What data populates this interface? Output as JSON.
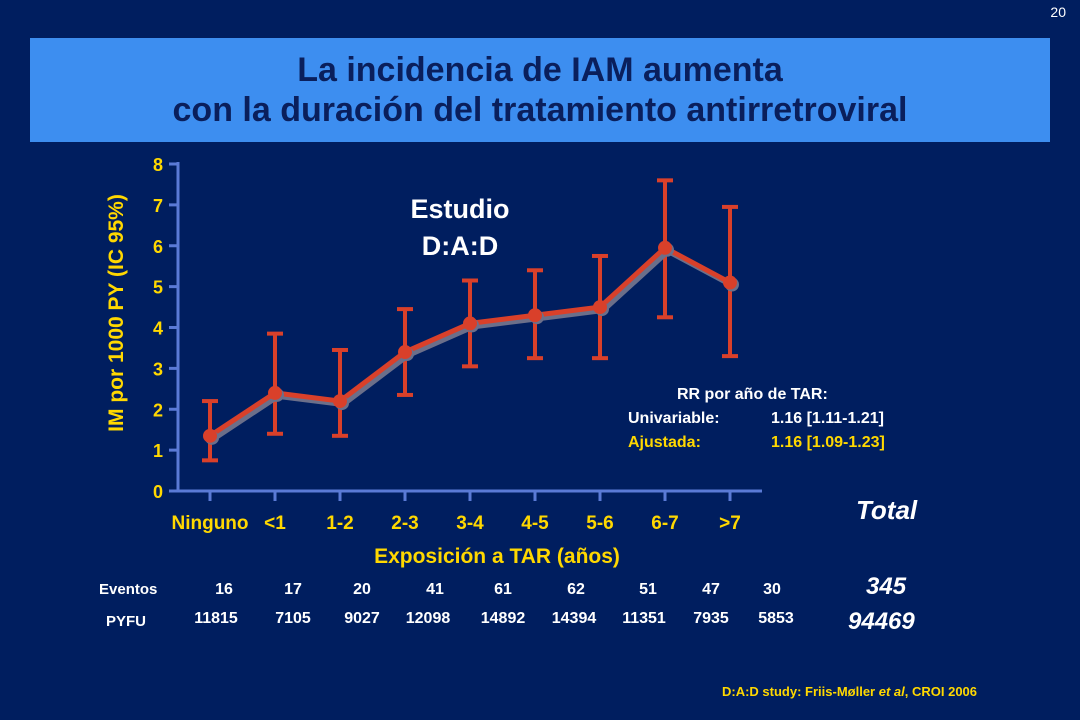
{
  "slide_number": "20",
  "title": {
    "line1": "La incidencia de IAM aumenta",
    "line2": "con la duración del tratamiento antirretroviral"
  },
  "colors": {
    "background": "#001e5f",
    "title_bar": "#3d8ef0",
    "title_text": "#0a1f5c",
    "series": "#d9402a",
    "axis": "#5a7ad6",
    "label_yellow": "#ffd800"
  },
  "chart_data": {
    "type": "line",
    "title": "",
    "annotation": [
      "Estudio",
      "D:A:D"
    ],
    "xlabel": "Exposición a TAR (años)",
    "ylabel": "IM por 1000 PY (IC 95%)",
    "ylim": [
      0,
      8
    ],
    "yticks": [
      "0",
      "1",
      "2",
      "3",
      "4",
      "5",
      "6",
      "7",
      "8"
    ],
    "categories": [
      "Ninguno",
      "<1",
      "1-2",
      "2-3",
      "3-4",
      "4-5",
      "5-6",
      "6-7",
      ">7"
    ],
    "series": [
      {
        "values": [
          1.35,
          2.4,
          2.2,
          3.4,
          4.1,
          4.3,
          4.5,
          5.95,
          5.1
        ],
        "ci_lower": [
          0.75,
          1.4,
          1.35,
          2.35,
          3.05,
          3.25,
          3.25,
          4.25,
          3.3
        ],
        "ci_upper": [
          2.2,
          3.85,
          3.45,
          4.45,
          5.15,
          5.4,
          5.75,
          7.6,
          6.95
        ]
      }
    ],
    "grid": false,
    "legend": "none"
  },
  "rr": {
    "heading": "RR por año de TAR:",
    "univariable_label": "Univariable:",
    "univariable_value": "1.16 [1.11-1.21]",
    "adjusted_label": "Ajustada:",
    "adjusted_value": "1.16 [1.09-1.23]"
  },
  "table": {
    "eventos_label": "Eventos",
    "pyfu_label": "PYFU",
    "eventos": [
      "16",
      "17",
      "20",
      "41",
      "61",
      "62",
      "51",
      "47",
      "30"
    ],
    "pyfu": [
      "11815",
      "7105",
      "9027",
      "12098",
      "14892",
      "14394",
      "11351",
      "7935",
      "5853"
    ]
  },
  "total": {
    "label": "Total",
    "eventos": "345",
    "pyfu": "94469"
  },
  "citation": {
    "prefix": "D:A:D study: Friis-Møller ",
    "italic": "et al",
    "suffix": ", CROI 2006"
  }
}
